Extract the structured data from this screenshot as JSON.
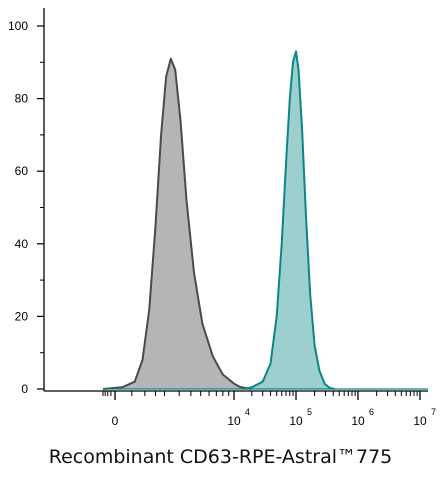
{
  "chart_data": {
    "type": "area",
    "title": "",
    "xlabel": "Recombinant CD63-RPE-Astral™775",
    "ylabel": "",
    "ylim": [
      0,
      100
    ],
    "yticks": [
      0,
      20,
      40,
      60,
      80,
      100
    ],
    "x_scale": "biexponential",
    "xticks": [
      {
        "base": "0",
        "exp": ""
      },
      {
        "base": "10",
        "exp": "4"
      },
      {
        "base": "10",
        "exp": "5"
      },
      {
        "base": "10",
        "exp": "6"
      },
      {
        "base": "10",
        "exp": "7"
      }
    ],
    "grid": false,
    "series": [
      {
        "fill": "#b5b5b5",
        "stroke": "#4a4a4a",
        "points": [
          [
            -2000,
            0
          ],
          [
            200,
            0.5
          ],
          [
            600,
            2
          ],
          [
            900,
            8
          ],
          [
            1200,
            22
          ],
          [
            1500,
            45
          ],
          [
            1800,
            70
          ],
          [
            2100,
            86
          ],
          [
            2400,
            91
          ],
          [
            2700,
            88
          ],
          [
            3100,
            74
          ],
          [
            3600,
            52
          ],
          [
            4300,
            32
          ],
          [
            5200,
            18
          ],
          [
            6500,
            9
          ],
          [
            8000,
            4
          ],
          [
            10000,
            1.5
          ],
          [
            12500,
            0.6
          ],
          [
            15000,
            0.3
          ],
          [
            20000,
            0
          ]
        ]
      },
      {
        "fill": "#9dcfcf",
        "stroke": "#0b8585",
        "points": [
          [
            15000,
            0
          ],
          [
            20000,
            0.5
          ],
          [
            30000,
            2
          ],
          [
            40000,
            7
          ],
          [
            50000,
            20
          ],
          [
            60000,
            40
          ],
          [
            70000,
            62
          ],
          [
            80000,
            80
          ],
          [
            90000,
            90
          ],
          [
            100000,
            93
          ],
          [
            110000,
            88
          ],
          [
            125000,
            72
          ],
          [
            145000,
            48
          ],
          [
            170000,
            26
          ],
          [
            200000,
            12
          ],
          [
            240000,
            5
          ],
          [
            290000,
            1.5
          ],
          [
            350000,
            0.3
          ],
          [
            420000,
            0
          ]
        ]
      }
    ]
  }
}
